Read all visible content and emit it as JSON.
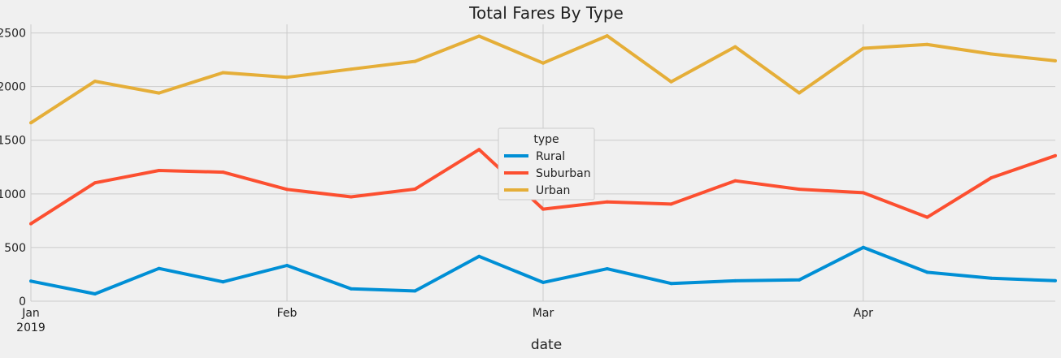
{
  "chart_data": {
    "type": "line",
    "title": "Total Fares By Type",
    "xlabel": "date",
    "ylabel": "",
    "x": [
      "2019-01-06",
      "2019-01-13",
      "2019-01-20",
      "2019-01-27",
      "2019-02-03",
      "2019-02-10",
      "2019-02-17",
      "2019-02-24",
      "2019-03-03",
      "2019-03-10",
      "2019-03-17",
      "2019-03-24",
      "2019-03-31",
      "2019-04-07",
      "2019-04-14",
      "2019-04-21",
      "2019-04-28"
    ],
    "x_ticks": [
      {
        "date": "2019-01-06",
        "label": "Jan",
        "sublabel": "2019"
      },
      {
        "date": "2019-02-03",
        "label": "Feb",
        "sublabel": ""
      },
      {
        "date": "2019-03-03",
        "label": "Mar",
        "sublabel": ""
      },
      {
        "date": "2019-04-07",
        "label": "Apr",
        "sublabel": ""
      }
    ],
    "xlim": [
      "2019-01-06",
      "2019-04-28"
    ],
    "ylim": [
      0,
      2580
    ],
    "y_ticks": [
      0,
      500,
      1000,
      1500,
      2000,
      2500
    ],
    "grid": true,
    "legend": {
      "title": "type",
      "placement": "center"
    },
    "series": [
      {
        "name": "Rural",
        "color": "#008fd5",
        "values": [
          187,
          68,
          305,
          180,
          333,
          115,
          95,
          418,
          175,
          302,
          165,
          190,
          198,
          501,
          269,
          214,
          191
        ]
      },
      {
        "name": "Suburban",
        "color": "#fc4f30",
        "values": [
          722,
          1103,
          1218,
          1202,
          1042,
          972,
          1045,
          1413,
          858,
          925,
          905,
          1122,
          1043,
          1011,
          782,
          1150,
          1356
        ]
      },
      {
        "name": "Urban",
        "color": "#e5ae38",
        "values": [
          1662,
          2050,
          1940,
          2130,
          2087,
          2162,
          2235,
          2470,
          2219,
          2473,
          2045,
          2371,
          1941,
          2357,
          2392,
          2304,
          2240
        ]
      }
    ]
  }
}
